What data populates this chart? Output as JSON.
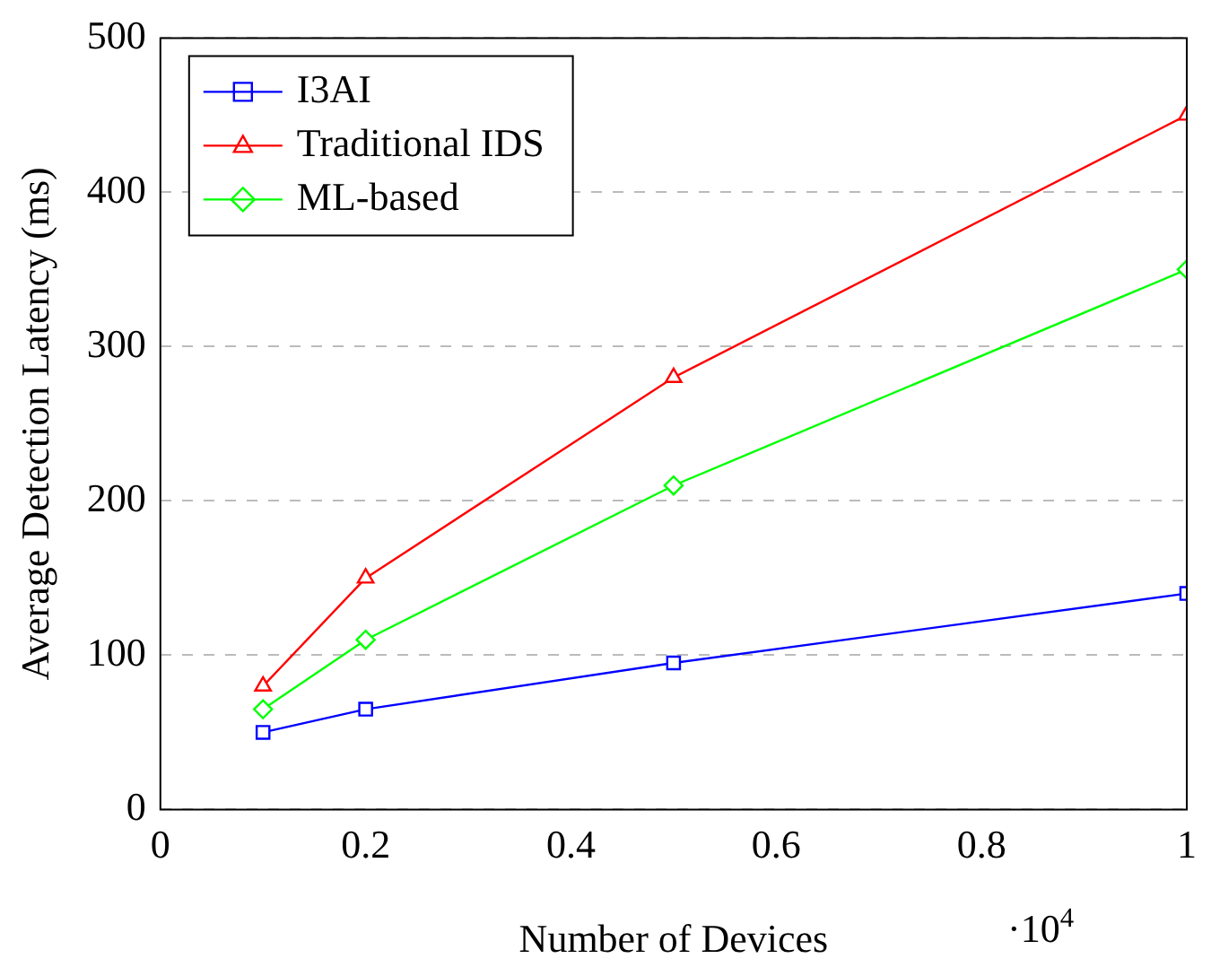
{
  "chart_data": {
    "type": "line",
    "xlabel": "Number of Devices",
    "ylabel": "Average Detection Latency (ms)",
    "x": [
      0.1,
      0.2,
      0.5,
      1
    ],
    "series": [
      {
        "name": "I3AI",
        "color": "#0000ff",
        "values": [
          50,
          65,
          95,
          140
        ],
        "marker": "square"
      },
      {
        "name": "Traditional IDS",
        "color": "#ff0000",
        "values": [
          80,
          150,
          280,
          450
        ],
        "marker": "triangle"
      },
      {
        "name": "ML-based",
        "color": "#00ff00",
        "values": [
          65,
          110,
          210,
          350
        ],
        "marker": "diamond"
      }
    ],
    "xlim": [
      0,
      1
    ],
    "xticks": [
      0,
      0.2,
      0.4,
      0.6,
      0.8,
      1
    ],
    "ylim": [
      0,
      500
    ],
    "yticks": [
      0,
      100,
      200,
      300,
      400,
      500
    ],
    "grid": "y",
    "legend": "top left",
    "line_style": "solid",
    "annotations": [
      "·10$^{4}$"
    ]
  }
}
